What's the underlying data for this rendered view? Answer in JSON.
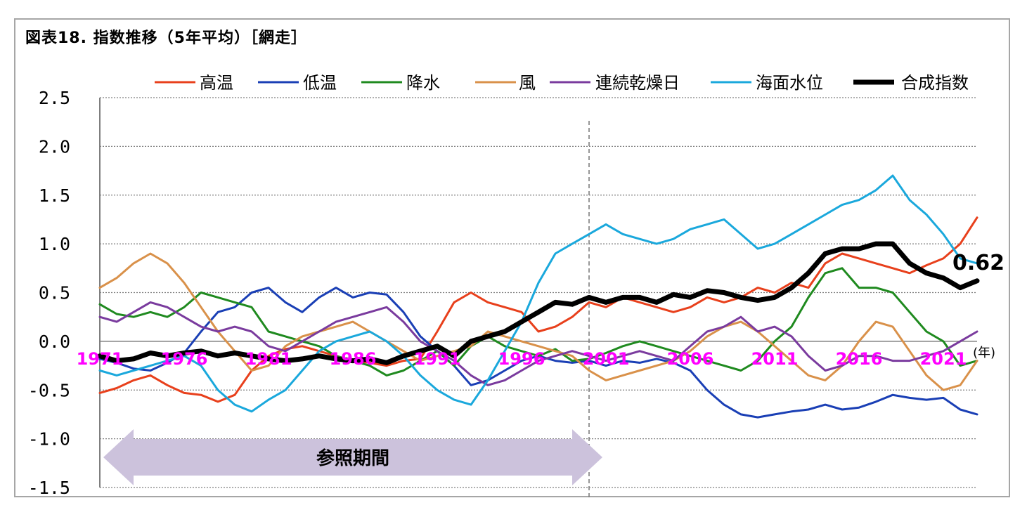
{
  "chart_data": {
    "type": "line",
    "title": "図表18. 指数推移（5年平均）［網走］",
    "xlabel": "",
    "ylabel": "",
    "x_unit": "(年)",
    "ylim": [
      -1.5,
      2.5
    ],
    "xlim": [
      1971,
      2023
    ],
    "yticks": [
      "2.5",
      "2.0",
      "1.5",
      "1.0",
      "0.5",
      "0.0",
      "-0.5",
      "-1.0",
      "-1.5"
    ],
    "xticks": [
      "1971",
      "1976",
      "1981",
      "1986",
      "1991",
      "1996",
      "2001",
      "2006",
      "2011",
      "2016",
      "2021"
    ],
    "legend_position": "top",
    "reference_period": {
      "label": "参照期間",
      "start": 1971,
      "end": 2000
    },
    "annotation": {
      "text": "0.62",
      "x": 2023,
      "y": 0.62
    },
    "grid": true,
    "series": [
      {
        "name": "高温",
        "color": "#e8401c",
        "width": 3,
        "x": [
          1971,
          1972,
          1973,
          1974,
          1975,
          1976,
          1977,
          1978,
          1979,
          1980,
          1981,
          1982,
          1983,
          1984,
          1985,
          1986,
          1987,
          1988,
          1989,
          1990,
          1991,
          1992,
          1993,
          1994,
          1995,
          1996,
          1997,
          1998,
          1999,
          2000,
          2001,
          2002,
          2003,
          2004,
          2005,
          2006,
          2007,
          2008,
          2009,
          2010,
          2011,
          2012,
          2013,
          2014,
          2015,
          2016,
          2017,
          2018,
          2019,
          2020,
          2021,
          2022,
          2023
        ],
        "y": [
          -0.53,
          -0.48,
          -0.4,
          -0.35,
          -0.45,
          -0.53,
          -0.55,
          -0.62,
          -0.55,
          -0.3,
          -0.15,
          -0.08,
          -0.05,
          -0.1,
          -0.15,
          -0.2,
          -0.22,
          -0.25,
          -0.2,
          -0.18,
          0.1,
          0.4,
          0.5,
          0.4,
          0.35,
          0.3,
          0.1,
          0.15,
          0.25,
          0.4,
          0.35,
          0.45,
          0.4,
          0.35,
          0.3,
          0.35,
          0.45,
          0.4,
          0.45,
          0.55,
          0.5,
          0.6,
          0.55,
          0.8,
          0.9,
          0.85,
          0.8,
          0.75,
          0.7,
          0.78,
          0.85,
          1.0,
          1.27
        ]
      },
      {
        "name": "低温",
        "color": "#1a3fb5",
        "width": 3,
        "x": [
          1971,
          1972,
          1973,
          1974,
          1975,
          1976,
          1977,
          1978,
          1979,
          1980,
          1981,
          1982,
          1983,
          1984,
          1985,
          1986,
          1987,
          1988,
          1989,
          1990,
          1991,
          1992,
          1993,
          1994,
          1995,
          1996,
          1997,
          1998,
          1999,
          2000,
          2001,
          2002,
          2003,
          2004,
          2005,
          2006,
          2007,
          2008,
          2009,
          2010,
          2011,
          2012,
          2013,
          2014,
          2015,
          2016,
          2017,
          2018,
          2019,
          2020,
          2021,
          2022,
          2023
        ],
        "y": [
          -0.18,
          -0.22,
          -0.28,
          -0.3,
          -0.22,
          -0.12,
          0.1,
          0.3,
          0.35,
          0.5,
          0.55,
          0.4,
          0.3,
          0.45,
          0.55,
          0.45,
          0.5,
          0.48,
          0.3,
          0.05,
          -0.1,
          -0.25,
          -0.45,
          -0.4,
          -0.3,
          -0.2,
          -0.15,
          -0.2,
          -0.22,
          -0.2,
          -0.25,
          -0.2,
          -0.22,
          -0.18,
          -0.22,
          -0.3,
          -0.5,
          -0.65,
          -0.75,
          -0.78,
          -0.75,
          -0.72,
          -0.7,
          -0.65,
          -0.7,
          -0.68,
          -0.62,
          -0.55,
          -0.58,
          -0.6,
          -0.58,
          -0.7,
          -0.75
        ]
      },
      {
        "name": "降水",
        "color": "#1f8a1f",
        "width": 3,
        "x": [
          1971,
          1972,
          1973,
          1974,
          1975,
          1976,
          1977,
          1978,
          1979,
          1980,
          1981,
          1982,
          1983,
          1984,
          1985,
          1986,
          1987,
          1988,
          1989,
          1990,
          1991,
          1992,
          1993,
          1994,
          1995,
          1996,
          1997,
          1998,
          1999,
          2000,
          2001,
          2002,
          2003,
          2004,
          2005,
          2006,
          2007,
          2008,
          2009,
          2010,
          2011,
          2012,
          2013,
          2014,
          2015,
          2016,
          2017,
          2018,
          2019,
          2020,
          2021,
          2022,
          2023
        ],
        "y": [
          0.38,
          0.28,
          0.25,
          0.3,
          0.25,
          0.35,
          0.5,
          0.45,
          0.4,
          0.35,
          0.1,
          0.05,
          0.0,
          -0.05,
          -0.15,
          -0.2,
          -0.25,
          -0.35,
          -0.3,
          -0.2,
          -0.1,
          -0.25,
          -0.05,
          0.05,
          -0.05,
          -0.1,
          -0.15,
          -0.08,
          -0.2,
          -0.18,
          -0.12,
          -0.05,
          0.0,
          -0.05,
          -0.1,
          -0.15,
          -0.2,
          -0.25,
          -0.3,
          -0.2,
          0.0,
          0.15,
          0.45,
          0.7,
          0.75,
          0.55,
          0.55,
          0.5,
          0.3,
          0.1,
          0.0,
          -0.25,
          -0.2
        ]
      },
      {
        "name": "風",
        "color": "#d9914a",
        "width": 3,
        "x": [
          1971,
          1972,
          1973,
          1974,
          1975,
          1976,
          1977,
          1978,
          1979,
          1980,
          1981,
          1982,
          1983,
          1984,
          1985,
          1986,
          1987,
          1988,
          1989,
          1990,
          1991,
          1992,
          1993,
          1994,
          1995,
          1996,
          1997,
          1998,
          1999,
          2000,
          2001,
          2002,
          2003,
          2004,
          2005,
          2006,
          2007,
          2008,
          2009,
          2010,
          2011,
          2012,
          2013,
          2014,
          2015,
          2016,
          2017,
          2018,
          2019,
          2020,
          2021,
          2022,
          2023
        ],
        "y": [
          0.55,
          0.65,
          0.8,
          0.9,
          0.8,
          0.6,
          0.35,
          0.1,
          -0.1,
          -0.3,
          -0.25,
          -0.05,
          0.05,
          0.1,
          0.15,
          0.2,
          0.1,
          0.0,
          -0.1,
          -0.2,
          -0.15,
          -0.1,
          -0.05,
          0.1,
          0.05,
          0.0,
          -0.05,
          -0.1,
          -0.15,
          -0.3,
          -0.4,
          -0.35,
          -0.3,
          -0.25,
          -0.2,
          -0.1,
          0.05,
          0.15,
          0.2,
          0.1,
          -0.05,
          -0.2,
          -0.35,
          -0.4,
          -0.25,
          0.0,
          0.2,
          0.15,
          -0.1,
          -0.35,
          -0.5,
          -0.45,
          -0.2
        ]
      },
      {
        "name": "連続乾燥日",
        "color": "#7a3b9e",
        "width": 3,
        "x": [
          1971,
          1972,
          1973,
          1974,
          1975,
          1976,
          1977,
          1978,
          1979,
          1980,
          1981,
          1982,
          1983,
          1984,
          1985,
          1986,
          1987,
          1988,
          1989,
          1990,
          1991,
          1992,
          1993,
          1994,
          1995,
          1996,
          1997,
          1998,
          1999,
          2000,
          2001,
          2002,
          2003,
          2004,
          2005,
          2006,
          2007,
          2008,
          2009,
          2010,
          2011,
          2012,
          2013,
          2014,
          2015,
          2016,
          2017,
          2018,
          2019,
          2020,
          2021,
          2022,
          2023
        ],
        "y": [
          0.25,
          0.2,
          0.3,
          0.4,
          0.35,
          0.25,
          0.15,
          0.1,
          0.15,
          0.1,
          -0.05,
          -0.1,
          0.0,
          0.1,
          0.2,
          0.25,
          0.3,
          0.35,
          0.2,
          0.0,
          -0.1,
          -0.2,
          -0.35,
          -0.45,
          -0.4,
          -0.3,
          -0.2,
          -0.15,
          -0.1,
          -0.15,
          -0.2,
          -0.15,
          -0.1,
          -0.15,
          -0.2,
          -0.05,
          0.1,
          0.15,
          0.25,
          0.1,
          0.15,
          0.05,
          -0.15,
          -0.3,
          -0.25,
          -0.15,
          -0.15,
          -0.2,
          -0.2,
          -0.15,
          -0.1,
          0.0,
          0.1
        ]
      },
      {
        "name": "海面水位",
        "color": "#1aa8dc",
        "width": 3,
        "x": [
          1971,
          1972,
          1973,
          1974,
          1975,
          1976,
          1977,
          1978,
          1979,
          1980,
          1981,
          1982,
          1983,
          1984,
          1985,
          1986,
          1987,
          1988,
          1989,
          1990,
          1991,
          1992,
          1993,
          1994,
          1995,
          1996,
          1997,
          1998,
          1999,
          2000,
          2001,
          2002,
          2003,
          2004,
          2005,
          2006,
          2007,
          2008,
          2009,
          2010,
          2011,
          2012,
          2013,
          2014,
          2015,
          2016,
          2017,
          2018,
          2019,
          2020,
          2021,
          2022,
          2023
        ],
        "y": [
          -0.3,
          -0.35,
          -0.3,
          -0.25,
          -0.2,
          -0.15,
          -0.25,
          -0.5,
          -0.65,
          -0.72,
          -0.6,
          -0.5,
          -0.3,
          -0.1,
          0.0,
          0.05,
          0.1,
          0.0,
          -0.15,
          -0.35,
          -0.5,
          -0.6,
          -0.65,
          -0.4,
          -0.1,
          0.2,
          0.6,
          0.9,
          1.0,
          1.1,
          1.2,
          1.1,
          1.05,
          1.0,
          1.05,
          1.15,
          1.2,
          1.25,
          1.1,
          0.95,
          1.0,
          1.1,
          1.2,
          1.3,
          1.4,
          1.45,
          1.55,
          1.7,
          1.45,
          1.3,
          1.1,
          0.85,
          0.8
        ]
      },
      {
        "name": "合成指数",
        "color": "#000000",
        "width": 7,
        "x": [
          1971,
          1972,
          1973,
          1974,
          1975,
          1976,
          1977,
          1978,
          1979,
          1980,
          1981,
          1982,
          1983,
          1984,
          1985,
          1986,
          1987,
          1988,
          1989,
          1990,
          1991,
          1992,
          1993,
          1994,
          1995,
          1996,
          1997,
          1998,
          1999,
          2000,
          2001,
          2002,
          2003,
          2004,
          2005,
          2006,
          2007,
          2008,
          2009,
          2010,
          2011,
          2012,
          2013,
          2014,
          2015,
          2016,
          2017,
          2018,
          2019,
          2020,
          2021,
          2022,
          2023
        ],
        "y": [
          -0.15,
          -0.2,
          -0.18,
          -0.12,
          -0.15,
          -0.12,
          -0.1,
          -0.15,
          -0.12,
          -0.15,
          -0.18,
          -0.2,
          -0.18,
          -0.15,
          -0.18,
          -0.2,
          -0.18,
          -0.22,
          -0.15,
          -0.1,
          -0.05,
          -0.15,
          0.0,
          0.05,
          0.1,
          0.2,
          0.3,
          0.4,
          0.38,
          0.45,
          0.4,
          0.45,
          0.45,
          0.4,
          0.48,
          0.45,
          0.52,
          0.5,
          0.45,
          0.42,
          0.45,
          0.55,
          0.7,
          0.9,
          0.95,
          0.95,
          1.0,
          1.0,
          0.8,
          0.7,
          0.65,
          0.55,
          0.62
        ]
      }
    ]
  }
}
